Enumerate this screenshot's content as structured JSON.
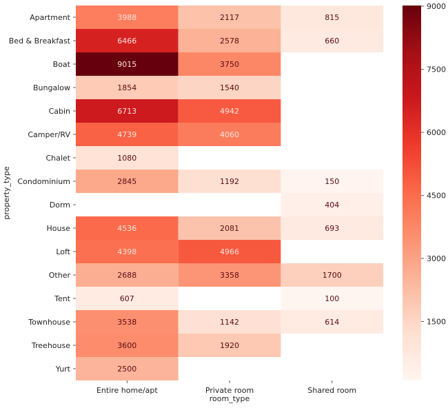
{
  "chart_data": {
    "type": "heatmap",
    "xlabel": "room_type",
    "ylabel": "property_type",
    "x_categories": [
      "Entire home/apt",
      "Private room",
      "Shared room"
    ],
    "y_categories": [
      "Apartment",
      "Bed & Breakfast",
      "Boat",
      "Bungalow",
      "Cabin",
      "Camper/RV",
      "Chalet",
      "Condominium",
      "Dorm",
      "House",
      "Loft",
      "Other",
      "Tent",
      "Townhouse",
      "Treehouse",
      "Yurt"
    ],
    "values": [
      [
        3988,
        2117,
        815
      ],
      [
        6466,
        2578,
        660
      ],
      [
        9015,
        3750,
        null
      ],
      [
        1854,
        1540,
        null
      ],
      [
        6713,
        4942,
        null
      ],
      [
        4739,
        4060,
        null
      ],
      [
        1080,
        null,
        null
      ],
      [
        2845,
        1192,
        150
      ],
      [
        null,
        null,
        404
      ],
      [
        4536,
        2081,
        693
      ],
      [
        4398,
        4966,
        null
      ],
      [
        2688,
        3358,
        1700
      ],
      [
        607,
        null,
        100
      ],
      [
        3538,
        1142,
        614
      ],
      [
        3600,
        1920,
        null
      ],
      [
        2500,
        null,
        null
      ]
    ],
    "colorbar": {
      "colormap": "Reds",
      "vmin": 100,
      "vmax": 9015,
      "ticks": [
        1500,
        3000,
        4500,
        6000,
        7500,
        9000
      ]
    }
  }
}
